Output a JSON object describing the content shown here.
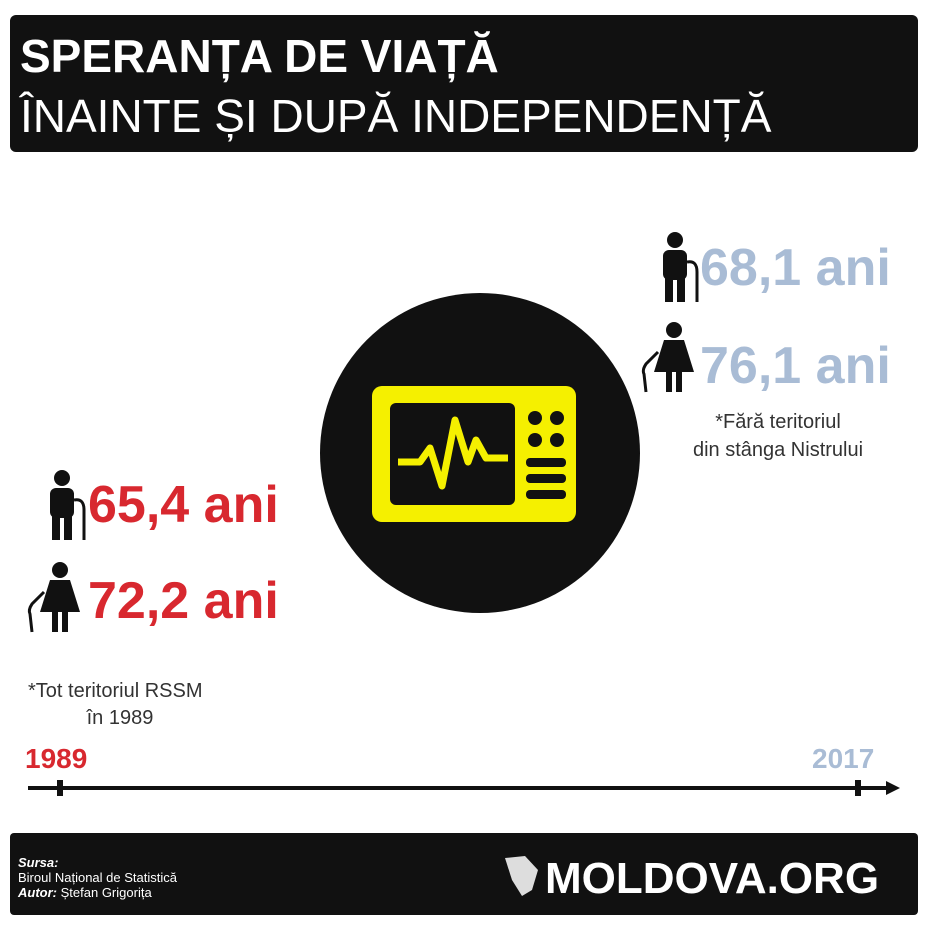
{
  "header": {
    "title_line1": "SPERANȚA DE VIAȚĂ",
    "title_line2": "ÎNAINTE ȘI DUPĂ INDEPENDENȚĂ"
  },
  "before": {
    "men": "65,4 ani",
    "women": "72,2 ani",
    "note_line1": "*Tot teritoriul RSSM",
    "note_line2": "în 1989",
    "year": "1989"
  },
  "after": {
    "men": "68,1 ani",
    "women": "76,1 ani",
    "note_line1": "*Fără teritoriul",
    "note_line2": "din stânga Nistrului",
    "year": "2017"
  },
  "footer": {
    "source_label": "Sursa:",
    "source": "Biroul Național de Statistică",
    "author_label": "Autor:",
    "author": "Ștefan Grigorița",
    "brand": "MOLDOVA.ORG"
  }
}
